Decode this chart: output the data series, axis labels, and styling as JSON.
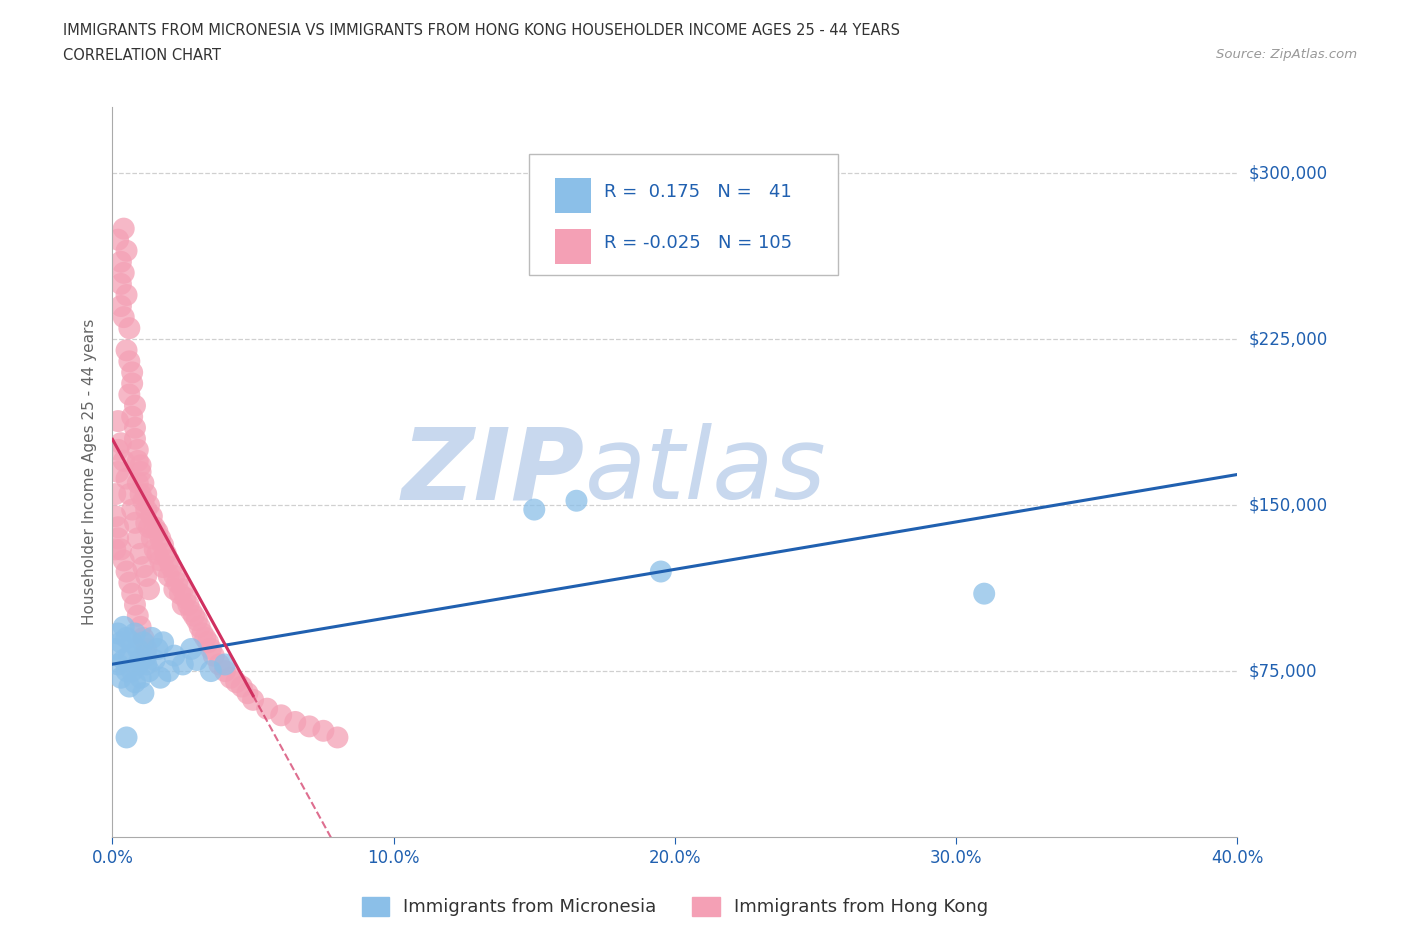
{
  "title_line1": "IMMIGRANTS FROM MICRONESIA VS IMMIGRANTS FROM HONG KONG HOUSEHOLDER INCOME AGES 25 - 44 YEARS",
  "title_line2": "CORRELATION CHART",
  "source_text": "Source: ZipAtlas.com",
  "ylabel": "Householder Income Ages 25 - 44 years",
  "watermark_part1": "ZIP",
  "watermark_part2": "atlas",
  "legend_label_blue": "Immigrants from Micronesia",
  "legend_label_pink": "Immigrants from Hong Kong",
  "R_blue": 0.175,
  "N_blue": 41,
  "R_pink": -0.025,
  "N_pink": 105,
  "xlim": [
    0.0,
    0.4
  ],
  "ylim": [
    0,
    330000
  ],
  "yticks": [
    0,
    75000,
    150000,
    225000,
    300000
  ],
  "xticks": [
    0.0,
    0.1,
    0.2,
    0.3,
    0.4
  ],
  "xtick_labels": [
    "0.0%",
    "10.0%",
    "20.0%",
    "30.0%",
    "40.0%"
  ],
  "ytick_right_labels": [
    "$75,000",
    "$150,000",
    "$225,000",
    "$300,000"
  ],
  "ytick_right_values": [
    75000,
    150000,
    225000,
    300000
  ],
  "blue_x": [
    0.001,
    0.002,
    0.002,
    0.003,
    0.003,
    0.004,
    0.004,
    0.005,
    0.005,
    0.006,
    0.006,
    0.007,
    0.007,
    0.008,
    0.008,
    0.009,
    0.009,
    0.01,
    0.01,
    0.011,
    0.011,
    0.012,
    0.012,
    0.013,
    0.014,
    0.015,
    0.016,
    0.017,
    0.018,
    0.02,
    0.022,
    0.025,
    0.028,
    0.03,
    0.035,
    0.04,
    0.15,
    0.165,
    0.195,
    0.31,
    0.005
  ],
  "blue_y": [
    85000,
    92000,
    78000,
    88000,
    72000,
    95000,
    80000,
    75000,
    90000,
    82000,
    68000,
    88000,
    75000,
    92000,
    70000,
    85000,
    78000,
    80000,
    72000,
    88000,
    65000,
    82000,
    78000,
    75000,
    90000,
    80000,
    85000,
    72000,
    88000,
    75000,
    82000,
    78000,
    85000,
    80000,
    75000,
    78000,
    148000,
    152000,
    120000,
    110000,
    45000
  ],
  "pink_x": [
    0.001,
    0.001,
    0.002,
    0.002,
    0.002,
    0.003,
    0.003,
    0.003,
    0.004,
    0.004,
    0.004,
    0.005,
    0.005,
    0.005,
    0.006,
    0.006,
    0.006,
    0.007,
    0.007,
    0.007,
    0.008,
    0.008,
    0.008,
    0.009,
    0.009,
    0.009,
    0.01,
    0.01,
    0.01,
    0.011,
    0.011,
    0.012,
    0.012,
    0.012,
    0.013,
    0.013,
    0.014,
    0.014,
    0.015,
    0.015,
    0.016,
    0.016,
    0.017,
    0.017,
    0.018,
    0.018,
    0.019,
    0.02,
    0.02,
    0.021,
    0.022,
    0.022,
    0.023,
    0.024,
    0.025,
    0.025,
    0.026,
    0.027,
    0.028,
    0.029,
    0.03,
    0.031,
    0.032,
    0.033,
    0.034,
    0.035,
    0.036,
    0.038,
    0.04,
    0.042,
    0.044,
    0.046,
    0.048,
    0.05,
    0.055,
    0.06,
    0.065,
    0.07,
    0.075,
    0.08,
    0.002,
    0.003,
    0.004,
    0.005,
    0.006,
    0.007,
    0.008,
    0.009,
    0.01,
    0.011,
    0.012,
    0.013,
    0.001,
    0.002,
    0.002,
    0.003,
    0.004,
    0.005,
    0.006,
    0.007,
    0.008,
    0.009,
    0.01,
    0.011,
    0.012
  ],
  "pink_y": [
    130000,
    155000,
    165000,
    175000,
    270000,
    260000,
    250000,
    240000,
    275000,
    255000,
    235000,
    265000,
    245000,
    220000,
    230000,
    215000,
    200000,
    205000,
    190000,
    210000,
    195000,
    180000,
    185000,
    175000,
    160000,
    170000,
    168000,
    155000,
    165000,
    152000,
    160000,
    148000,
    155000,
    142000,
    150000,
    140000,
    145000,
    135000,
    140000,
    130000,
    138000,
    128000,
    135000,
    125000,
    132000,
    122000,
    128000,
    125000,
    118000,
    122000,
    118000,
    112000,
    115000,
    110000,
    112000,
    105000,
    108000,
    105000,
    102000,
    100000,
    98000,
    95000,
    92000,
    90000,
    88000,
    85000,
    82000,
    78000,
    75000,
    72000,
    70000,
    68000,
    65000,
    62000,
    58000,
    55000,
    52000,
    50000,
    48000,
    45000,
    188000,
    178000,
    170000,
    162000,
    155000,
    148000,
    142000,
    135000,
    128000,
    122000,
    118000,
    112000,
    145000,
    140000,
    135000,
    130000,
    125000,
    120000,
    115000,
    110000,
    105000,
    100000,
    95000,
    90000,
    85000
  ],
  "blue_color": "#8bbfe8",
  "pink_color": "#f4a0b5",
  "blue_line_color": "#2060b0",
  "pink_line_color": "#d03060",
  "pink_line_style": "--",
  "blue_line_style": "-",
  "grid_color": "#d0d0d0",
  "bg_color": "#ffffff",
  "legend_text_color": "#2060b0",
  "title_color": "#333333",
  "watermark_color1": "#c8d8ee",
  "watermark_color2": "#c8d8ee",
  "right_tick_color": "#2060b0",
  "xtick_color": "#2060b0"
}
